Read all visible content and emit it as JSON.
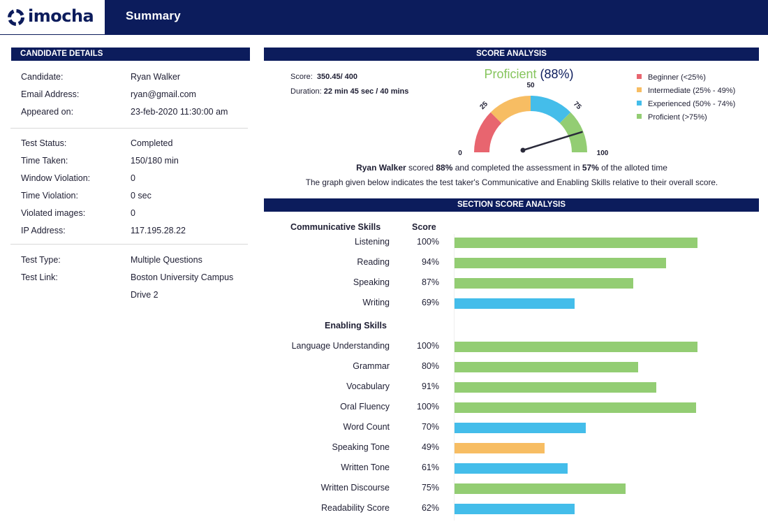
{
  "header": {
    "logo_text": "imocha",
    "title": "Summary"
  },
  "candidate_details": {
    "heading": "CANDIDATE DETAILS",
    "group1": [
      {
        "label": "Candidate:",
        "value": "Ryan Walker"
      },
      {
        "label": "Email Address:",
        "value": "ryan@gmail.com"
      },
      {
        "label": "Appeared on:",
        "value": "23-feb-2020   11:30:00 am"
      }
    ],
    "group2": [
      {
        "label": "Test Status:",
        "value": "Completed"
      },
      {
        "label": "Time Taken:",
        "value": "150/180 min"
      },
      {
        "label": "Window Violation:",
        "value": "0"
      },
      {
        "label": "Time Violation:",
        "value": "0 sec"
      },
      {
        "label": "Violated images:",
        "value": "0"
      },
      {
        "label": "IP Address:",
        "value": "117.195.28.22"
      }
    ],
    "group3": [
      {
        "label": "Test Type:",
        "value": "Multiple Questions"
      },
      {
        "label": "Test Link:",
        "value": "Boston University Campus",
        "value2": "Drive 2"
      }
    ]
  },
  "score_analysis": {
    "heading": "SCORE ANALYSIS",
    "score_label": "Score:",
    "score_value": "350.45/ 400",
    "duration_label": "Duration:",
    "duration_value": "22 min 45 sec / 40 mins",
    "level": "Proficient",
    "level_pct": "(88%)",
    "gauge": {
      "value": 88,
      "ticks": [
        "0",
        "25",
        "50",
        "75",
        "100"
      ],
      "colors": {
        "beginner": "#e8656f",
        "intermediate": "#f7bd63",
        "experienced": "#44bdea",
        "proficient": "#93cd73"
      }
    },
    "legend": [
      {
        "label": "Beginner (<25%)",
        "color": "#e8656f"
      },
      {
        "label": "Intermediate (25% - 49%)",
        "color": "#f7bd63"
      },
      {
        "label": "Experienced (50% - 74%)",
        "color": "#44bdea"
      },
      {
        "label": "Proficient (>75%)",
        "color": "#93cd73"
      }
    ],
    "sentence1": {
      "name": "Ryan Walker",
      "t1": " scored ",
      "pct": "88%",
      "t2": " and completed the assessment in ",
      "time_pct": "57%",
      "t3": " of the alloted time"
    },
    "sentence2": "The graph given below indicates the test taker's Communicative and Enabling Skills relative to their overall score."
  },
  "section_score": {
    "heading": "SECTION SCORE ANALYSIS",
    "communicative_heading": "Communicative Skills",
    "score_heading": "Score",
    "enabling_heading": "Enabling Skills",
    "communicative": [
      {
        "label": "Listening",
        "score": "100%",
        "value": 100,
        "color": "#93cd73"
      },
      {
        "label": "Reading",
        "score": "94%",
        "value": 87,
        "color": "#93cd73"
      },
      {
        "label": "Speaking",
        "score": "87%",
        "value": 73.5,
        "color": "#93cd73"
      },
      {
        "label": "Writing",
        "score": "69%",
        "value": 49.5,
        "color": "#44bdea"
      }
    ],
    "enabling": [
      {
        "label": "Language Understanding",
        "score": "100%",
        "value": 100,
        "color": "#93cd73"
      },
      {
        "label": "Grammar",
        "score": "80%",
        "value": 75.5,
        "color": "#93cd73"
      },
      {
        "label": "Vocabulary",
        "score": "91%",
        "value": 83,
        "color": "#93cd73"
      },
      {
        "label": "Oral Fluency",
        "score": "100%",
        "value": 99.5,
        "color": "#93cd73"
      },
      {
        "label": "Word Count",
        "score": "70%",
        "value": 54,
        "color": "#44bdea"
      },
      {
        "label": "Speaking Tone",
        "score": "49%",
        "value": 37,
        "color": "#f7bd63"
      },
      {
        "label": "Written Tone",
        "score": "61%",
        "value": 46.5,
        "color": "#44bdea"
      },
      {
        "label": "Written Discourse",
        "score": "75%",
        "value": 70.5,
        "color": "#93cd73"
      },
      {
        "label": "Readability Score",
        "score": "62%",
        "value": 49.5,
        "color": "#44bdea"
      }
    ]
  }
}
